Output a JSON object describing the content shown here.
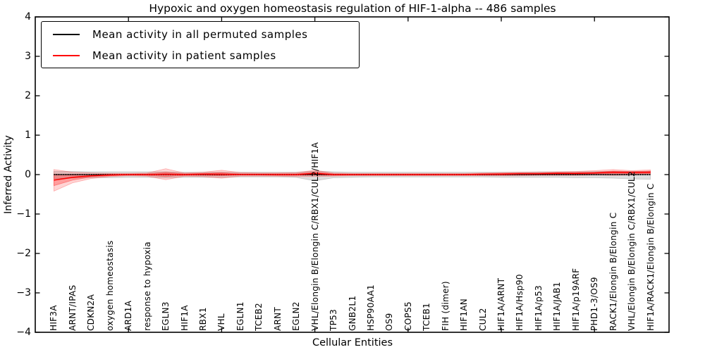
{
  "figure": {
    "background": "#ffffff"
  },
  "axes": {
    "yticks": [
      4,
      3,
      2,
      1,
      0,
      -1,
      -2,
      -3,
      -4
    ],
    "yticklabels": [
      "4",
      "3",
      "2",
      "1",
      "0",
      "−1",
      "−2",
      "−3",
      "−4"
    ],
    "xticks_unlabeled": [
      5,
      10,
      15,
      20,
      25,
      30
    ],
    "spine_color": "#000000"
  },
  "legend": {
    "entries": [
      {
        "label": "Mean activity in all permuted samples",
        "color": "#000000"
      },
      {
        "label": "Mean activity in patient samples",
        "color": "#ff0000"
      }
    ]
  },
  "chart_data": {
    "type": "line",
    "title": "Hypoxic and oxygen homeostasis regulation of HIF-1-alpha -- 486 samples",
    "xlabel": "Cellular Entities",
    "ylabel": "Inferred Activity",
    "ylim": [
      -4,
      4
    ],
    "xlim": [
      0,
      34
    ],
    "grid": false,
    "legend_position": "upper left",
    "categories": [
      "HIF3A",
      "ARNT/IPAS",
      "CDKN2A",
      "oxygen homeostasis",
      "ARD1A",
      "response to hypoxia",
      "EGLN3",
      "HIF1A",
      "RBX1",
      "VHL",
      "EGLN1",
      "TCEB2",
      "ARNT",
      "EGLN2",
      "VHL/Elongin B/Elongin C/RBX1/CUL2/HIF1A",
      "TP53",
      "GNB2L1",
      "HSP90AA1",
      "OS9",
      "COPS5",
      "TCEB1",
      "FIH (dimer)",
      "HIF1AN",
      "CUL2",
      "HIF1A/ARNT",
      "HIF1A/Hsp90",
      "HIF1A/p53",
      "HIF1A/JAB1",
      "HIF1A/p19ARF",
      "PHD1-3/OS9",
      "RACK1/Elongin B/Elongin C",
      "VHL/Elongin B/Elongin C/RBX1/CUL2",
      "HIF1A/RACK1/Elongin B/Elongin C"
    ],
    "series": [
      {
        "name": "Mean activity in all permuted samples",
        "color": "#000000",
        "style": "solid-with-dense-dots",
        "values": [
          0,
          0,
          0,
          0,
          0,
          0,
          0,
          0,
          0,
          0,
          0,
          0,
          0,
          0,
          0,
          0,
          0,
          0,
          0,
          0,
          0,
          0,
          0,
          0,
          0,
          0,
          0,
          0,
          0,
          0,
          0,
          0,
          0
        ]
      },
      {
        "name": "Mean activity in patient samples",
        "color": "#ff0000",
        "style": "solid",
        "values": [
          -0.14,
          -0.07,
          -0.03,
          -0.01,
          0.0,
          0.0,
          0.01,
          0.0,
          0.01,
          0.01,
          0.0,
          0.0,
          0.0,
          0.0,
          0.03,
          0.0,
          0.0,
          0.0,
          0.0,
          0.0,
          0.0,
          0.0,
          0.0,
          0.01,
          0.01,
          0.02,
          0.02,
          0.03,
          0.03,
          0.04,
          0.06,
          0.05,
          0.06
        ]
      }
    ],
    "bands": [
      {
        "name": "permuted-samples-std-band",
        "color": "#888888",
        "opacity": 0.28,
        "upper": [
          0.08,
          0.08,
          0.07,
          0.07,
          0.07,
          0.07,
          0.07,
          0.06,
          0.06,
          0.06,
          0.06,
          0.06,
          0.06,
          0.06,
          0.09,
          0.07,
          0.06,
          0.06,
          0.06,
          0.06,
          0.06,
          0.06,
          0.06,
          0.06,
          0.06,
          0.06,
          0.07,
          0.07,
          0.07,
          0.08,
          0.08,
          0.08,
          0.08
        ],
        "lower": [
          -0.1,
          -0.09,
          -0.08,
          -0.08,
          -0.07,
          -0.07,
          -0.08,
          -0.07,
          -0.07,
          -0.07,
          -0.06,
          -0.06,
          -0.06,
          -0.07,
          -0.16,
          -0.08,
          -0.07,
          -0.06,
          -0.06,
          -0.06,
          -0.06,
          -0.06,
          -0.06,
          -0.06,
          -0.07,
          -0.07,
          -0.07,
          -0.07,
          -0.08,
          -0.08,
          -0.09,
          -0.11,
          -0.12
        ]
      },
      {
        "name": "patient-samples-outer-band",
        "color": "#ff0000",
        "opacity": 0.17,
        "upper": [
          0.13,
          0.06,
          0.04,
          0.03,
          0.03,
          0.04,
          0.15,
          0.04,
          0.06,
          0.11,
          0.05,
          0.04,
          0.04,
          0.05,
          0.11,
          0.04,
          0.03,
          0.03,
          0.03,
          0.03,
          0.03,
          0.03,
          0.03,
          0.04,
          0.05,
          0.06,
          0.06,
          0.07,
          0.08,
          0.1,
          0.13,
          0.1,
          0.12
        ],
        "lower": [
          -0.42,
          -0.21,
          -0.1,
          -0.05,
          -0.03,
          -0.04,
          -0.13,
          -0.04,
          -0.05,
          -0.09,
          -0.04,
          -0.04,
          -0.04,
          -0.05,
          -0.05,
          -0.04,
          -0.03,
          -0.03,
          -0.03,
          -0.03,
          -0.03,
          -0.03,
          -0.03,
          -0.03,
          -0.03,
          -0.03,
          -0.02,
          -0.02,
          -0.02,
          -0.01,
          -0.02,
          -0.01,
          0.0
        ]
      },
      {
        "name": "patient-samples-inner-band",
        "color": "#ff0000",
        "opacity": 0.26,
        "upper": [
          0.01,
          -0.01,
          0.0,
          0.01,
          0.01,
          0.02,
          0.06,
          0.02,
          0.03,
          0.05,
          0.02,
          0.02,
          0.02,
          0.02,
          0.07,
          0.02,
          0.01,
          0.01,
          0.01,
          0.01,
          0.01,
          0.01,
          0.01,
          0.02,
          0.03,
          0.04,
          0.04,
          0.05,
          0.05,
          0.06,
          0.09,
          0.08,
          0.09
        ],
        "lower": [
          -0.28,
          -0.14,
          -0.06,
          -0.03,
          -0.01,
          -0.02,
          -0.05,
          -0.02,
          -0.02,
          -0.03,
          -0.01,
          -0.01,
          -0.02,
          -0.02,
          -0.01,
          -0.02,
          -0.01,
          -0.01,
          -0.01,
          -0.01,
          -0.01,
          -0.01,
          -0.01,
          -0.01,
          -0.01,
          0.0,
          0.0,
          0.01,
          0.01,
          0.02,
          0.03,
          0.03,
          0.03
        ]
      }
    ]
  }
}
